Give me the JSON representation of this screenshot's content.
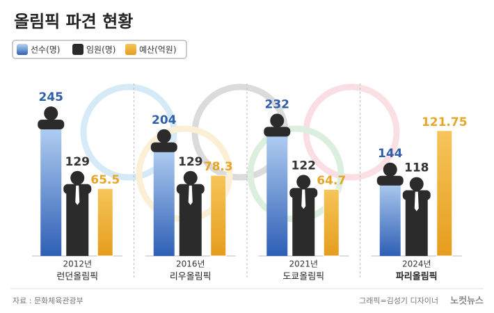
{
  "chart_data": {
    "type": "bar",
    "title": "올림픽 파견 현황",
    "categories": [
      "2012년",
      "2016년",
      "2021년",
      "2024년"
    ],
    "olympics": [
      "런던올림픽",
      "리우올림픽",
      "도쿄올림픽",
      "파리올림픽"
    ],
    "series": [
      {
        "name": "선수(명)",
        "color": "#3a6fc4",
        "values": [
          245,
          204,
          232,
          144
        ]
      },
      {
        "name": "임원(명)",
        "color": "#2b2b2b",
        "values": [
          129,
          129,
          122,
          118
        ]
      },
      {
        "name": "예산(억원)",
        "color": "#f0b232",
        "values": [
          65.5,
          78.3,
          64.7,
          121.75
        ]
      }
    ],
    "source": "자료 : 문화체육관광부",
    "credit": "그래픽=김성기 디자이너",
    "logo": "노컷뉴스"
  }
}
